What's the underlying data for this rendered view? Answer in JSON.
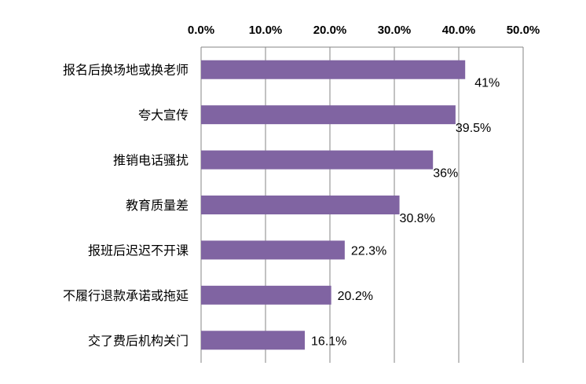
{
  "chart_data": {
    "type": "bar",
    "orientation": "horizontal",
    "categories": [
      "报名后换场地或换老师",
      "夸大宣传",
      "推销电话骚扰",
      "教育质量差",
      "报班后迟迟不开课",
      "不履行退款承诺或拖延",
      "交了费后机构关门"
    ],
    "values": [
      41,
      39.5,
      36,
      30.8,
      22.3,
      20.2,
      16.1
    ],
    "data_labels": [
      "41%",
      "39.5%",
      "36%",
      "30.8%",
      "22.3%",
      "20.2%",
      "16.1%"
    ],
    "x_ticks": [
      "0.0%",
      "10.0%",
      "20.0%",
      "30.0%",
      "40.0%",
      "50.0%"
    ],
    "xlim": [
      0,
      50
    ],
    "x_axis_position": "top",
    "grid": true,
    "bar_color": "#8064A2",
    "grid_color": "#868686"
  }
}
